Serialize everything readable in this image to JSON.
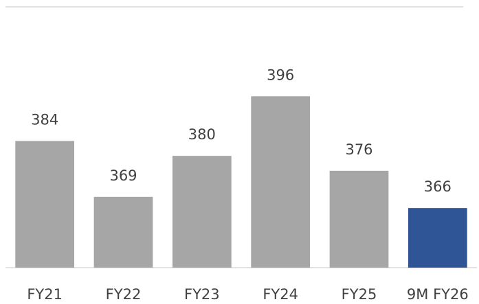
{
  "chart_data": {
    "type": "bar",
    "categories": [
      "FY21",
      "FY22",
      "FY23",
      "FY24",
      "FY25",
      "9M FY26"
    ],
    "values": [
      384,
      369,
      380,
      396,
      376,
      366
    ],
    "colors": [
      "#a6a6a6",
      "#a6a6a6",
      "#a6a6a6",
      "#a6a6a6",
      "#a6a6a6",
      "#2f5597"
    ],
    "ylim": [
      350,
      420
    ]
  }
}
